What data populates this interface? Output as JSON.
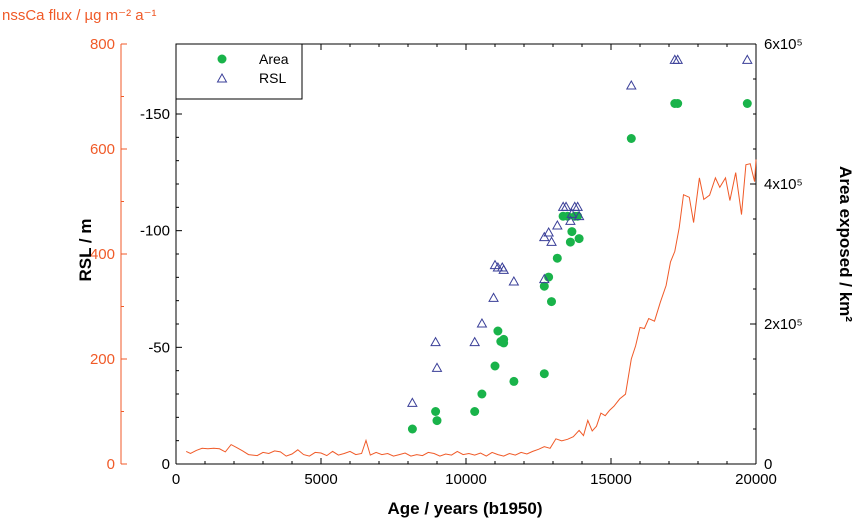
{
  "chart_data": {
    "type": "scatter",
    "xlabel": "Age / years (b1950)",
    "xlim": [
      0,
      20000
    ],
    "x_ticks": [
      "0",
      "5000",
      "10000",
      "15000",
      "20000"
    ],
    "axes": {
      "left_outer": {
        "label": "nssCa flux / µg m⁻² a⁻¹",
        "color": "#f05a28",
        "range": [
          0,
          800
        ],
        "ticks": [
          "800",
          "600",
          "400",
          "200",
          "0"
        ]
      },
      "left_inner": {
        "label": "RSL / m",
        "range": [
          0,
          -180
        ],
        "ticks": [
          "-150",
          "-100",
          "-50",
          "0"
        ]
      },
      "right": {
        "label": "Area exposed / km²",
        "range": [
          0,
          600000
        ],
        "ticks": [
          "6x10⁵",
          "4x10⁵",
          "2x10⁵",
          "0"
        ]
      }
    },
    "legend": {
      "position": "top-left",
      "entries": [
        "Area",
        "RSL"
      ]
    },
    "series": [
      {
        "name": "Area",
        "axis": "right",
        "marker": "filled-circle",
        "color": "#19b34a",
        "points": [
          [
            8150,
            50000
          ],
          [
            8950,
            75000
          ],
          [
            9000,
            62000
          ],
          [
            10300,
            75000
          ],
          [
            10550,
            100000
          ],
          [
            11000,
            140000
          ],
          [
            11100,
            190000
          ],
          [
            11200,
            175000
          ],
          [
            11300,
            178000
          ],
          [
            11300,
            173000
          ],
          [
            11650,
            118000
          ],
          [
            12700,
            129000
          ],
          [
            12700,
            254000
          ],
          [
            12850,
            267000
          ],
          [
            12950,
            232000
          ],
          [
            13150,
            294000
          ],
          [
            13350,
            354000
          ],
          [
            13500,
            354000
          ],
          [
            13600,
            317000
          ],
          [
            13650,
            332000
          ],
          [
            13750,
            354000
          ],
          [
            13850,
            354000
          ],
          [
            13900,
            322000
          ],
          [
            15700,
            465000
          ],
          [
            17200,
            515000
          ],
          [
            17300,
            515000
          ],
          [
            19700,
            515000
          ]
        ]
      },
      {
        "name": "RSL",
        "axis": "left_inner",
        "marker": "open-triangle",
        "color": "#3a3f98",
        "points": [
          [
            8150,
            -26
          ],
          [
            8950,
            -52
          ],
          [
            9000,
            -41
          ],
          [
            10300,
            -52
          ],
          [
            10550,
            -60
          ],
          [
            10950,
            -71
          ],
          [
            11000,
            -85
          ],
          [
            11100,
            -84
          ],
          [
            11250,
            -84
          ],
          [
            11300,
            -83
          ],
          [
            11650,
            -78
          ],
          [
            12700,
            -79
          ],
          [
            12700,
            -97
          ],
          [
            12850,
            -99
          ],
          [
            12950,
            -95
          ],
          [
            13150,
            -102
          ],
          [
            13350,
            -110
          ],
          [
            13450,
            -110
          ],
          [
            13600,
            -104
          ],
          [
            13650,
            -107
          ],
          [
            13750,
            -110
          ],
          [
            13850,
            -110
          ],
          [
            13900,
            -106
          ],
          [
            15700,
            -162
          ],
          [
            17200,
            -173
          ],
          [
            17300,
            -173
          ],
          [
            19700,
            -173
          ]
        ]
      },
      {
        "name": "nssCa flux",
        "axis": "left_outer",
        "marker": "line",
        "color": "#f05a28",
        "points": [
          [
            350,
            24
          ],
          [
            500,
            20
          ],
          [
            700,
            26
          ],
          [
            900,
            30
          ],
          [
            1100,
            29
          ],
          [
            1300,
            30
          ],
          [
            1500,
            29
          ],
          [
            1700,
            23
          ],
          [
            1900,
            37
          ],
          [
            2100,
            31
          ],
          [
            2300,
            25
          ],
          [
            2500,
            18
          ],
          [
            2800,
            16
          ],
          [
            3000,
            22
          ],
          [
            3200,
            20
          ],
          [
            3400,
            25
          ],
          [
            3600,
            23
          ],
          [
            3800,
            15
          ],
          [
            4000,
            19
          ],
          [
            4200,
            27
          ],
          [
            4400,
            18
          ],
          [
            4600,
            15
          ],
          [
            4800,
            22
          ],
          [
            5000,
            21
          ],
          [
            5200,
            16
          ],
          [
            5400,
            24
          ],
          [
            5600,
            17
          ],
          [
            5800,
            20
          ],
          [
            6000,
            24
          ],
          [
            6200,
            18
          ],
          [
            6400,
            20
          ],
          [
            6550,
            45
          ],
          [
            6700,
            17
          ],
          [
            6900,
            22
          ],
          [
            7100,
            18
          ],
          [
            7300,
            20
          ],
          [
            7500,
            15
          ],
          [
            7700,
            18
          ],
          [
            7900,
            21
          ],
          [
            8100,
            15
          ],
          [
            8300,
            18
          ],
          [
            8500,
            16
          ],
          [
            8700,
            22
          ],
          [
            8900,
            20
          ],
          [
            9100,
            15
          ],
          [
            9300,
            19
          ],
          [
            9500,
            17
          ],
          [
            9700,
            24
          ],
          [
            9900,
            18
          ],
          [
            10100,
            20
          ],
          [
            10300,
            17
          ],
          [
            10500,
            21
          ],
          [
            10700,
            15
          ],
          [
            10900,
            22
          ],
          [
            11100,
            18
          ],
          [
            11300,
            15
          ],
          [
            11500,
            20
          ],
          [
            11700,
            17
          ],
          [
            11900,
            22
          ],
          [
            12100,
            19
          ],
          [
            12300,
            24
          ],
          [
            12500,
            28
          ],
          [
            12700,
            33
          ],
          [
            12900,
            30
          ],
          [
            13100,
            48
          ],
          [
            13300,
            44
          ],
          [
            13500,
            47
          ],
          [
            13700,
            52
          ],
          [
            13900,
            64
          ],
          [
            14050,
            54
          ],
          [
            14200,
            83
          ],
          [
            14350,
            63
          ],
          [
            14500,
            72
          ],
          [
            14650,
            97
          ],
          [
            14800,
            92
          ],
          [
            14950,
            102
          ],
          [
            15100,
            110
          ],
          [
            15300,
            124
          ],
          [
            15500,
            133
          ],
          [
            15700,
            200
          ],
          [
            15850,
            225
          ],
          [
            16000,
            260
          ],
          [
            16150,
            258
          ],
          [
            16300,
            277
          ],
          [
            16500,
            272
          ],
          [
            16700,
            308
          ],
          [
            16900,
            340
          ],
          [
            17050,
            385
          ],
          [
            17200,
            405
          ],
          [
            17350,
            450
          ],
          [
            17500,
            513
          ],
          [
            17700,
            508
          ],
          [
            17850,
            460
          ],
          [
            18050,
            545
          ],
          [
            18200,
            504
          ],
          [
            18400,
            512
          ],
          [
            18600,
            545
          ],
          [
            18750,
            527
          ],
          [
            18950,
            545
          ],
          [
            19100,
            502
          ],
          [
            19300,
            555
          ],
          [
            19500,
            475
          ],
          [
            19650,
            570
          ],
          [
            19800,
            572
          ],
          [
            19950,
            538
          ],
          [
            20000,
            580
          ]
        ]
      }
    ]
  }
}
